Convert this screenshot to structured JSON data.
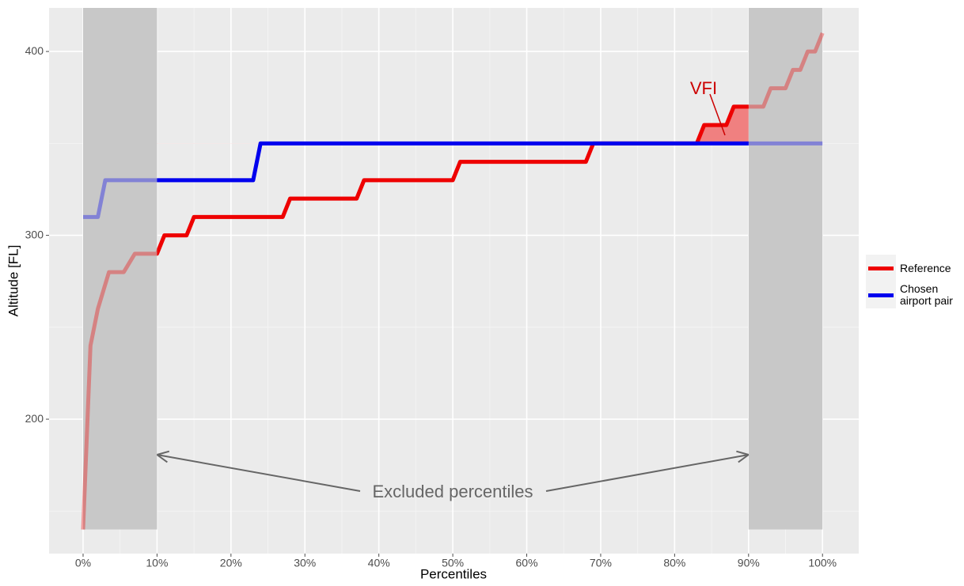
{
  "chart_data": {
    "type": "line",
    "x_label": "Percentiles",
    "y_label": "Altitude [FL]",
    "xlim": [
      -4.6,
      104.9
    ],
    "ylim": [
      126.9,
      423.7
    ],
    "xticks": [
      {
        "value": 0,
        "label": "0%"
      },
      {
        "value": 10,
        "label": "10%"
      },
      {
        "value": 20,
        "label": "20%"
      },
      {
        "value": 30,
        "label": "30%"
      },
      {
        "value": 40,
        "label": "40%"
      },
      {
        "value": 50,
        "label": "50%"
      },
      {
        "value": 60,
        "label": "60%"
      },
      {
        "value": 70,
        "label": "70%"
      },
      {
        "value": 80,
        "label": "80%"
      },
      {
        "value": 90,
        "label": "90%"
      },
      {
        "value": 100,
        "label": "100%"
      }
    ],
    "yticks": [
      200,
      300,
      400
    ],
    "grid": true,
    "shaded_ranges": [
      {
        "xmin": 0,
        "xmax": 10,
        "ymin": 140
      },
      {
        "xmin": 90,
        "xmax": 100,
        "ymin": 140
      }
    ],
    "series": [
      {
        "name": "Reference",
        "color": "#ee0000",
        "x": [
          0,
          1,
          2,
          3.5,
          5.5,
          7,
          10,
          11,
          14,
          15,
          27,
          28,
          37,
          38,
          50,
          51,
          68,
          69,
          83,
          84,
          87,
          88,
          90,
          92,
          93,
          95,
          96,
          97,
          98,
          99,
          100
        ],
        "values": [
          140,
          240,
          260,
          280,
          280,
          290,
          290,
          300,
          300,
          310,
          310,
          320,
          320,
          330,
          330,
          340,
          340,
          350,
          350,
          360,
          360,
          370,
          370,
          370,
          380,
          380,
          390,
          390,
          400,
          400,
          410
        ]
      },
      {
        "name": "Chosen airport pair",
        "color": "#0000ee",
        "x": [
          0,
          2,
          3,
          23,
          24,
          100
        ],
        "values": [
          310,
          310,
          330,
          330,
          350,
          350
        ]
      }
    ],
    "annotations": [
      "VFI",
      "Excluded percentiles"
    ]
  }
}
